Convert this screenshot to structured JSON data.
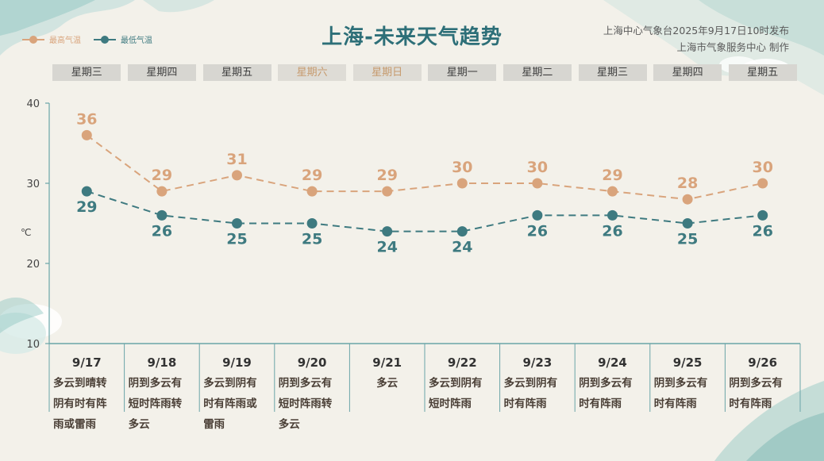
{
  "header": {
    "title": "上海-未来天气趋势",
    "issuer_line1": "上海中心气象台2025年9月17日10时发布",
    "issuer_line2": "上海市气象服务中心 制作"
  },
  "colors": {
    "high": "#d9a47c",
    "low": "#3e7a80",
    "axis": "#6aa5a8"
  },
  "weekdays": [
    "星期三",
    "星期四",
    "星期五",
    "星期六",
    "星期日",
    "星期一",
    "星期二",
    "星期三",
    "星期四",
    "星期五"
  ],
  "weekend_flags": [
    false,
    false,
    false,
    true,
    true,
    false,
    false,
    false,
    false,
    false
  ],
  "conditions": [
    "多云到晴转\n阴有时有阵\n雨或雷雨",
    "阴到多云有\n短时阵雨转\n多云",
    "多云到阴有\n时有阵雨或\n雷雨",
    "阴到多云有\n短时阵雨转\n多云",
    "多云",
    "多云到阴有\n短时阵雨",
    "多云到阴有\n时有阵雨",
    "阴到多云有\n时有阵雨",
    "阴到多云有\n时有阵雨",
    "阴到多云有\n时有阵雨"
  ],
  "chart_data": {
    "type": "line",
    "categories": [
      "9/17",
      "9/18",
      "9/19",
      "9/20",
      "9/21",
      "9/22",
      "9/23",
      "9/24",
      "9/25",
      "9/26"
    ],
    "series": [
      {
        "name": "最高气温",
        "values": [
          36,
          29,
          31,
          29,
          29,
          30,
          30,
          29,
          28,
          30
        ]
      },
      {
        "name": "最低气温",
        "values": [
          29,
          26,
          25,
          25,
          24,
          24,
          26,
          26,
          25,
          26
        ]
      }
    ],
    "ylabel": "℃",
    "ylim": [
      10,
      40
    ],
    "yticks": [
      10,
      20,
      30,
      40
    ],
    "legend": "top-left",
    "grid": false
  }
}
